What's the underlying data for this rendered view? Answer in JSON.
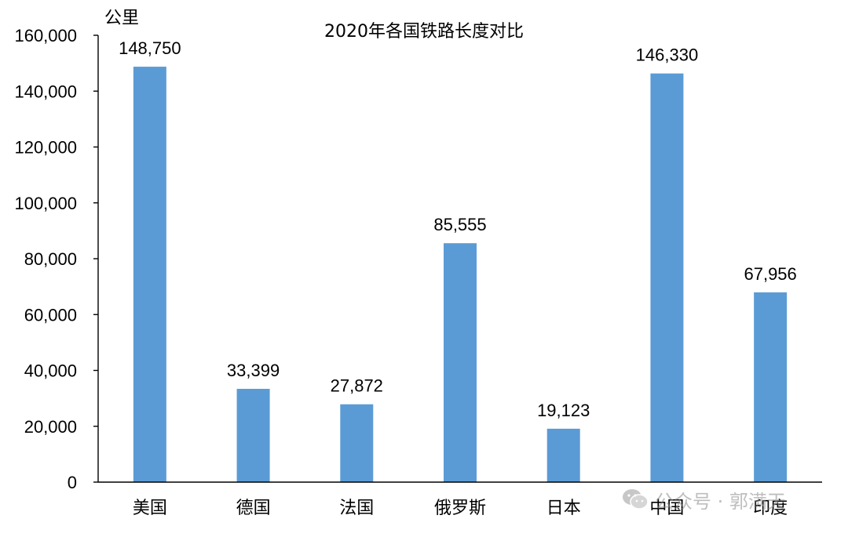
{
  "chart_data": {
    "type": "bar",
    "title": "2020年各国铁路长度对比",
    "ylabel": "公里",
    "xlabel": "",
    "categories": [
      "美国",
      "德国",
      "法国",
      "俄罗斯",
      "日本",
      "中国",
      "印度"
    ],
    "values": [
      148750,
      33399,
      27872,
      85555,
      19123,
      146330,
      67956
    ],
    "value_labels": [
      "148,750",
      "33,399",
      "27,872",
      "85,555",
      "19,123",
      "146,330",
      "67,956"
    ],
    "ylim": [
      0,
      160000
    ],
    "yticks": [
      0,
      20000,
      40000,
      60000,
      80000,
      100000,
      120000,
      140000,
      160000
    ],
    "ytick_labels": [
      "0",
      "20,000",
      "40,000",
      "60,000",
      "80,000",
      "100,000",
      "120,000",
      "140,000",
      "160,000"
    ],
    "grid": false,
    "legend": "none",
    "bar_color": "#5b9bd5"
  },
  "watermark": {
    "text": "公众号 · 郭满天",
    "icon": "wechat-icon"
  }
}
